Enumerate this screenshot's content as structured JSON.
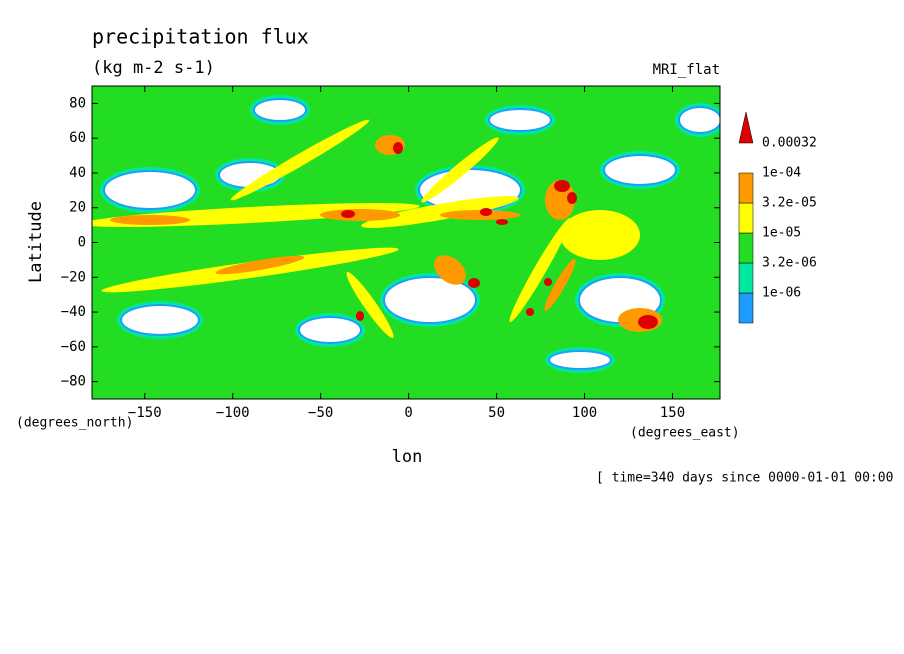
{
  "chart_data": {
    "type": "contour",
    "title": "precipitation flux",
    "subtitle": "(kg m-2 s-1)",
    "annotation": "MRI_flat",
    "footnote": "[ time=340 days since 0000-01-01 00:00",
    "x_label": "lon",
    "y_label": "Latitude",
    "x_units": "(degrees_east)",
    "y_units": "(degrees_north)",
    "xlim": [
      -180,
      177
    ],
    "ylim": [
      -90,
      90
    ],
    "xticks": [
      -150,
      -100,
      -50,
      0,
      50,
      100,
      150
    ],
    "yticks": [
      -80,
      -60,
      -40,
      -20,
      0,
      20,
      40,
      60,
      80
    ],
    "levels": [
      {
        "value": 1e-06,
        "label": "1e-06"
      },
      {
        "value": 3.2e-06,
        "label": "3.2e-06"
      },
      {
        "value": 1e-05,
        "label": "1e-05"
      },
      {
        "value": 3.2e-05,
        "label": "3.2e-05"
      },
      {
        "value": 0.0001,
        "label": "1e-04"
      },
      {
        "value": 0.00032,
        "label": "0.00032"
      }
    ],
    "colors": [
      "#1e9bff",
      "#00e8a0",
      "#22dd22",
      "#ffff00",
      "#ff9900",
      "#dd0000"
    ]
  }
}
